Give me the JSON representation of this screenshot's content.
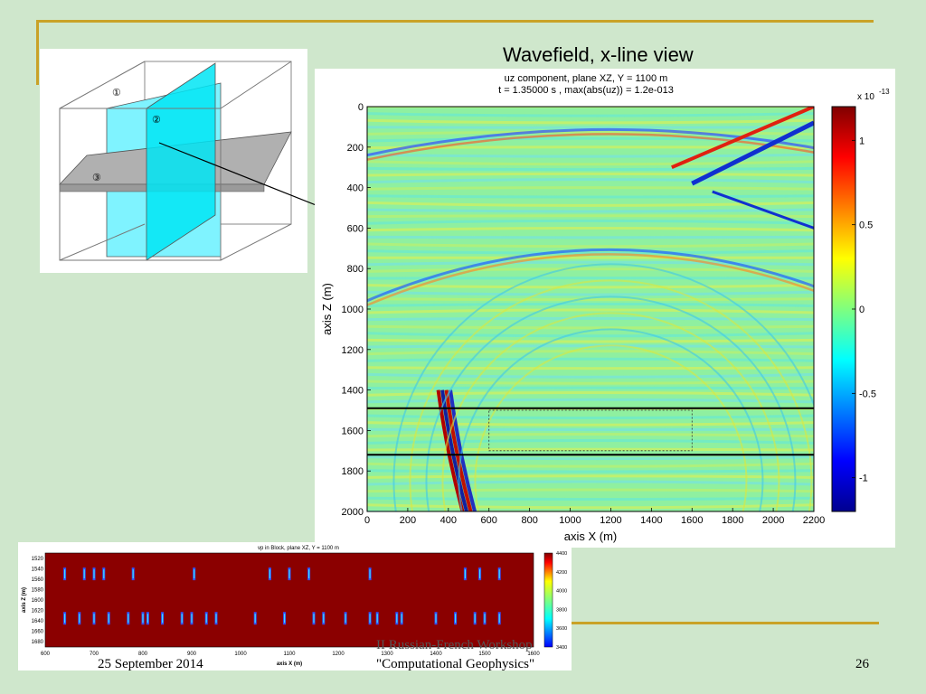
{
  "slide": {
    "title": "Wavefield, x-line view",
    "footer_date": "25 September 2014",
    "footer_workshop_line1": "II Russian-French Workshop",
    "footer_workshop_line2": "\"Computational Geophysics\"",
    "page_number": "26",
    "accent_color": "#c9a227",
    "background_color": "#cfe7cc"
  },
  "diagram": {
    "plane_labels": [
      "①",
      "②",
      "③"
    ],
    "plane_colors": [
      "#7ff3ff",
      "#00e5f5",
      "#b0b0b0"
    ]
  },
  "chart_data": [
    {
      "type": "heatmap",
      "title_line1": "uz component,  plane XZ,  Y = 1100 m",
      "title_line2": "t = 1.35000 s ,   max(abs(uz)) = 1.2e-013",
      "xlabel": "axis X (m)",
      "ylabel": "axis Z (m)",
      "xlim": [
        0,
        2200
      ],
      "ylim": [
        2000,
        0
      ],
      "x_ticks": [
        0,
        200,
        400,
        600,
        800,
        1000,
        1200,
        1400,
        1600,
        1800,
        2000,
        2200
      ],
      "y_ticks": [
        0,
        200,
        400,
        600,
        800,
        1000,
        1200,
        1400,
        1600,
        1800,
        2000
      ],
      "colorbar": {
        "exponent_label": "x 10",
        "exponent": "-13",
        "range": [
          -1.2,
          1.2
        ],
        "ticks": [
          1,
          0.5,
          0,
          -0.5,
          -1
        ],
        "tick_labels": [
          "1",
          "0.5",
          "0",
          "-0.5",
          "-1"
        ],
        "colormap": "jet"
      },
      "horizontal_lines_z": [
        1490,
        1720
      ],
      "dotted_box": {
        "x": [
          600,
          1600
        ],
        "z": [
          1500,
          1700
        ]
      },
      "grid": false
    },
    {
      "type": "heatmap",
      "title": "vp in Block, plane XZ, Y = 1100 m",
      "xlabel": "axis X (m)",
      "ylabel": "axis Z (m)",
      "xlim": [
        600,
        1600
      ],
      "ylim": [
        1690,
        1510
      ],
      "x_ticks": [
        600,
        700,
        800,
        900,
        1000,
        1100,
        1200,
        1300,
        1400,
        1500,
        1600
      ],
      "y_ticks": [
        1520,
        1540,
        1560,
        1580,
        1600,
        1620,
        1640,
        1660,
        1680
      ],
      "colorbar": {
        "range": [
          3400,
          4400
        ],
        "ticks": [
          4400,
          4200,
          4000,
          3800,
          3600,
          3400
        ],
        "tick_labels": [
          "4400",
          "4200",
          "4000",
          "3800",
          "3600",
          "3400"
        ],
        "colormap": "jet"
      },
      "background_value": 4400,
      "inclusion_rows_z": [
        1550,
        1635
      ],
      "inclusions_x_row1": [
        640,
        680,
        700,
        720,
        780,
        905,
        1060,
        1100,
        1140,
        1265,
        1460,
        1490,
        1530
      ],
      "inclusions_x_row2": [
        640,
        670,
        700,
        730,
        770,
        800,
        810,
        840,
        880,
        900,
        930,
        950,
        1030,
        1090,
        1150,
        1170,
        1215,
        1265,
        1280,
        1320,
        1330,
        1400,
        1440,
        1480,
        1500,
        1530
      ],
      "grid": false
    }
  ]
}
